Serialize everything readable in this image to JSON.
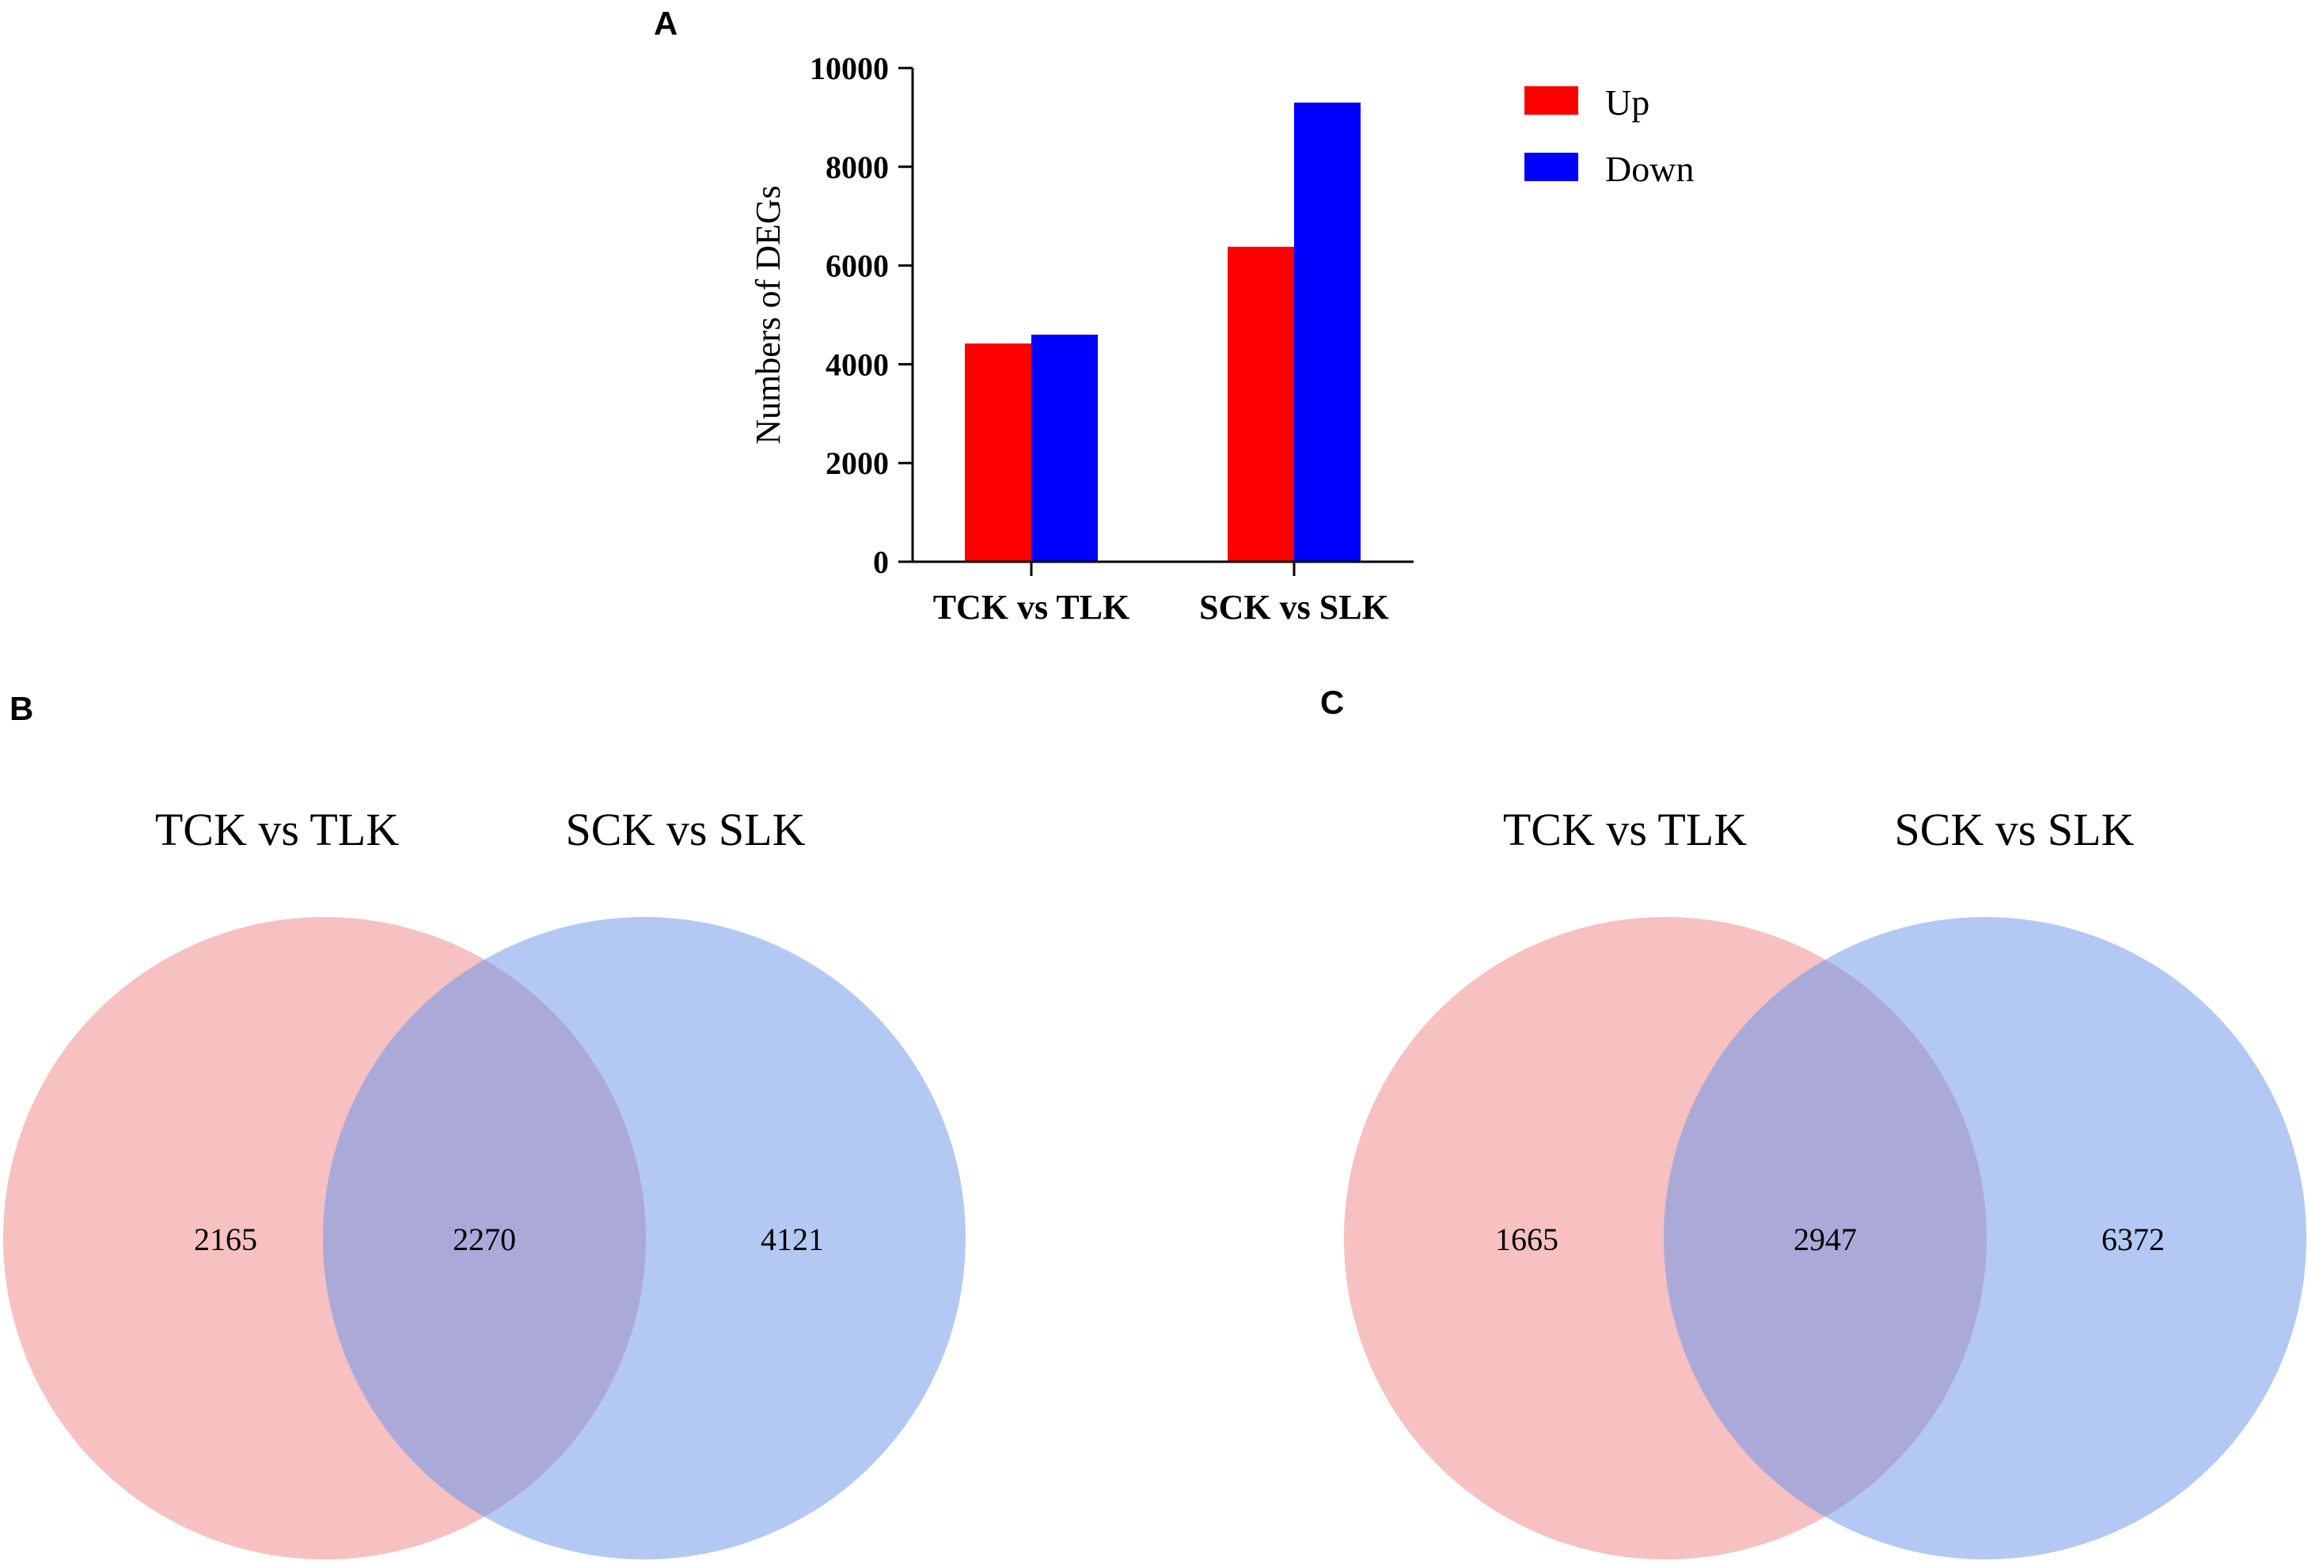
{
  "panels": {
    "a": "A",
    "b": "B",
    "c": "C"
  },
  "chart_data": [
    {
      "type": "bar",
      "title": "",
      "xlabel": "",
      "ylabel": "Numbers of DEGs",
      "ylim": [
        0,
        10000
      ],
      "yticks": [
        0,
        2000,
        4000,
        6000,
        8000,
        10000
      ],
      "categories": [
        "TCK vs TLK",
        "SCK vs SLK"
      ],
      "series": [
        {
          "name": "Up",
          "color": "#ff0000",
          "values": [
            4420,
            6380
          ]
        },
        {
          "name": "Down",
          "color": "#0000ff",
          "values": [
            4600,
            9300
          ]
        }
      ],
      "legend": "top-right"
    },
    {
      "type": "venn",
      "sets": [
        "TCK vs TLK",
        "SCK vs SLK"
      ],
      "colors": [
        "#f7c0c1",
        "#b3c9f4"
      ],
      "overlap_color": "#aba9d8",
      "values": {
        "left_only": "2165",
        "both": "2270",
        "right_only": "4121"
      }
    },
    {
      "type": "venn",
      "sets": [
        "TCK vs TLK",
        "SCK vs SLK"
      ],
      "colors": [
        "#f7c0c1",
        "#b3c9f4"
      ],
      "overlap_color": "#aba9d8",
      "values": {
        "left_only": "1665",
        "both": "2947",
        "right_only": "6372"
      }
    }
  ]
}
